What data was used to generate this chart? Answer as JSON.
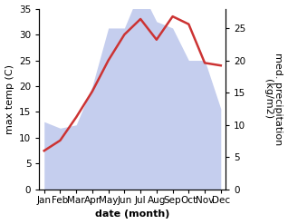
{
  "months": [
    "Jan",
    "Feb",
    "Mar",
    "Apr",
    "May",
    "Jun",
    "Jul",
    "Aug",
    "Sep",
    "Oct",
    "Nov",
    "Dec"
  ],
  "max_temp": [
    7.5,
    9.5,
    14.0,
    19.0,
    25.0,
    30.0,
    33.0,
    29.0,
    33.5,
    32.0,
    24.5,
    24.0
  ],
  "precipitation": [
    10.5,
    9.5,
    10.0,
    16.0,
    25.0,
    25.0,
    31.0,
    26.0,
    25.0,
    20.0,
    20.0,
    12.5
  ],
  "temp_ylim": [
    0,
    35
  ],
  "precip_ylim": [
    0,
    28
  ],
  "temp_color": "#cc3333",
  "precip_fill_color": "#c5ceee",
  "xlabel": "date (month)",
  "ylabel_left": "max temp (C)",
  "ylabel_right": "med. precipitation\n(kg/m2)",
  "label_fontsize": 8,
  "tick_fontsize": 7.5,
  "linewidth": 1.8
}
